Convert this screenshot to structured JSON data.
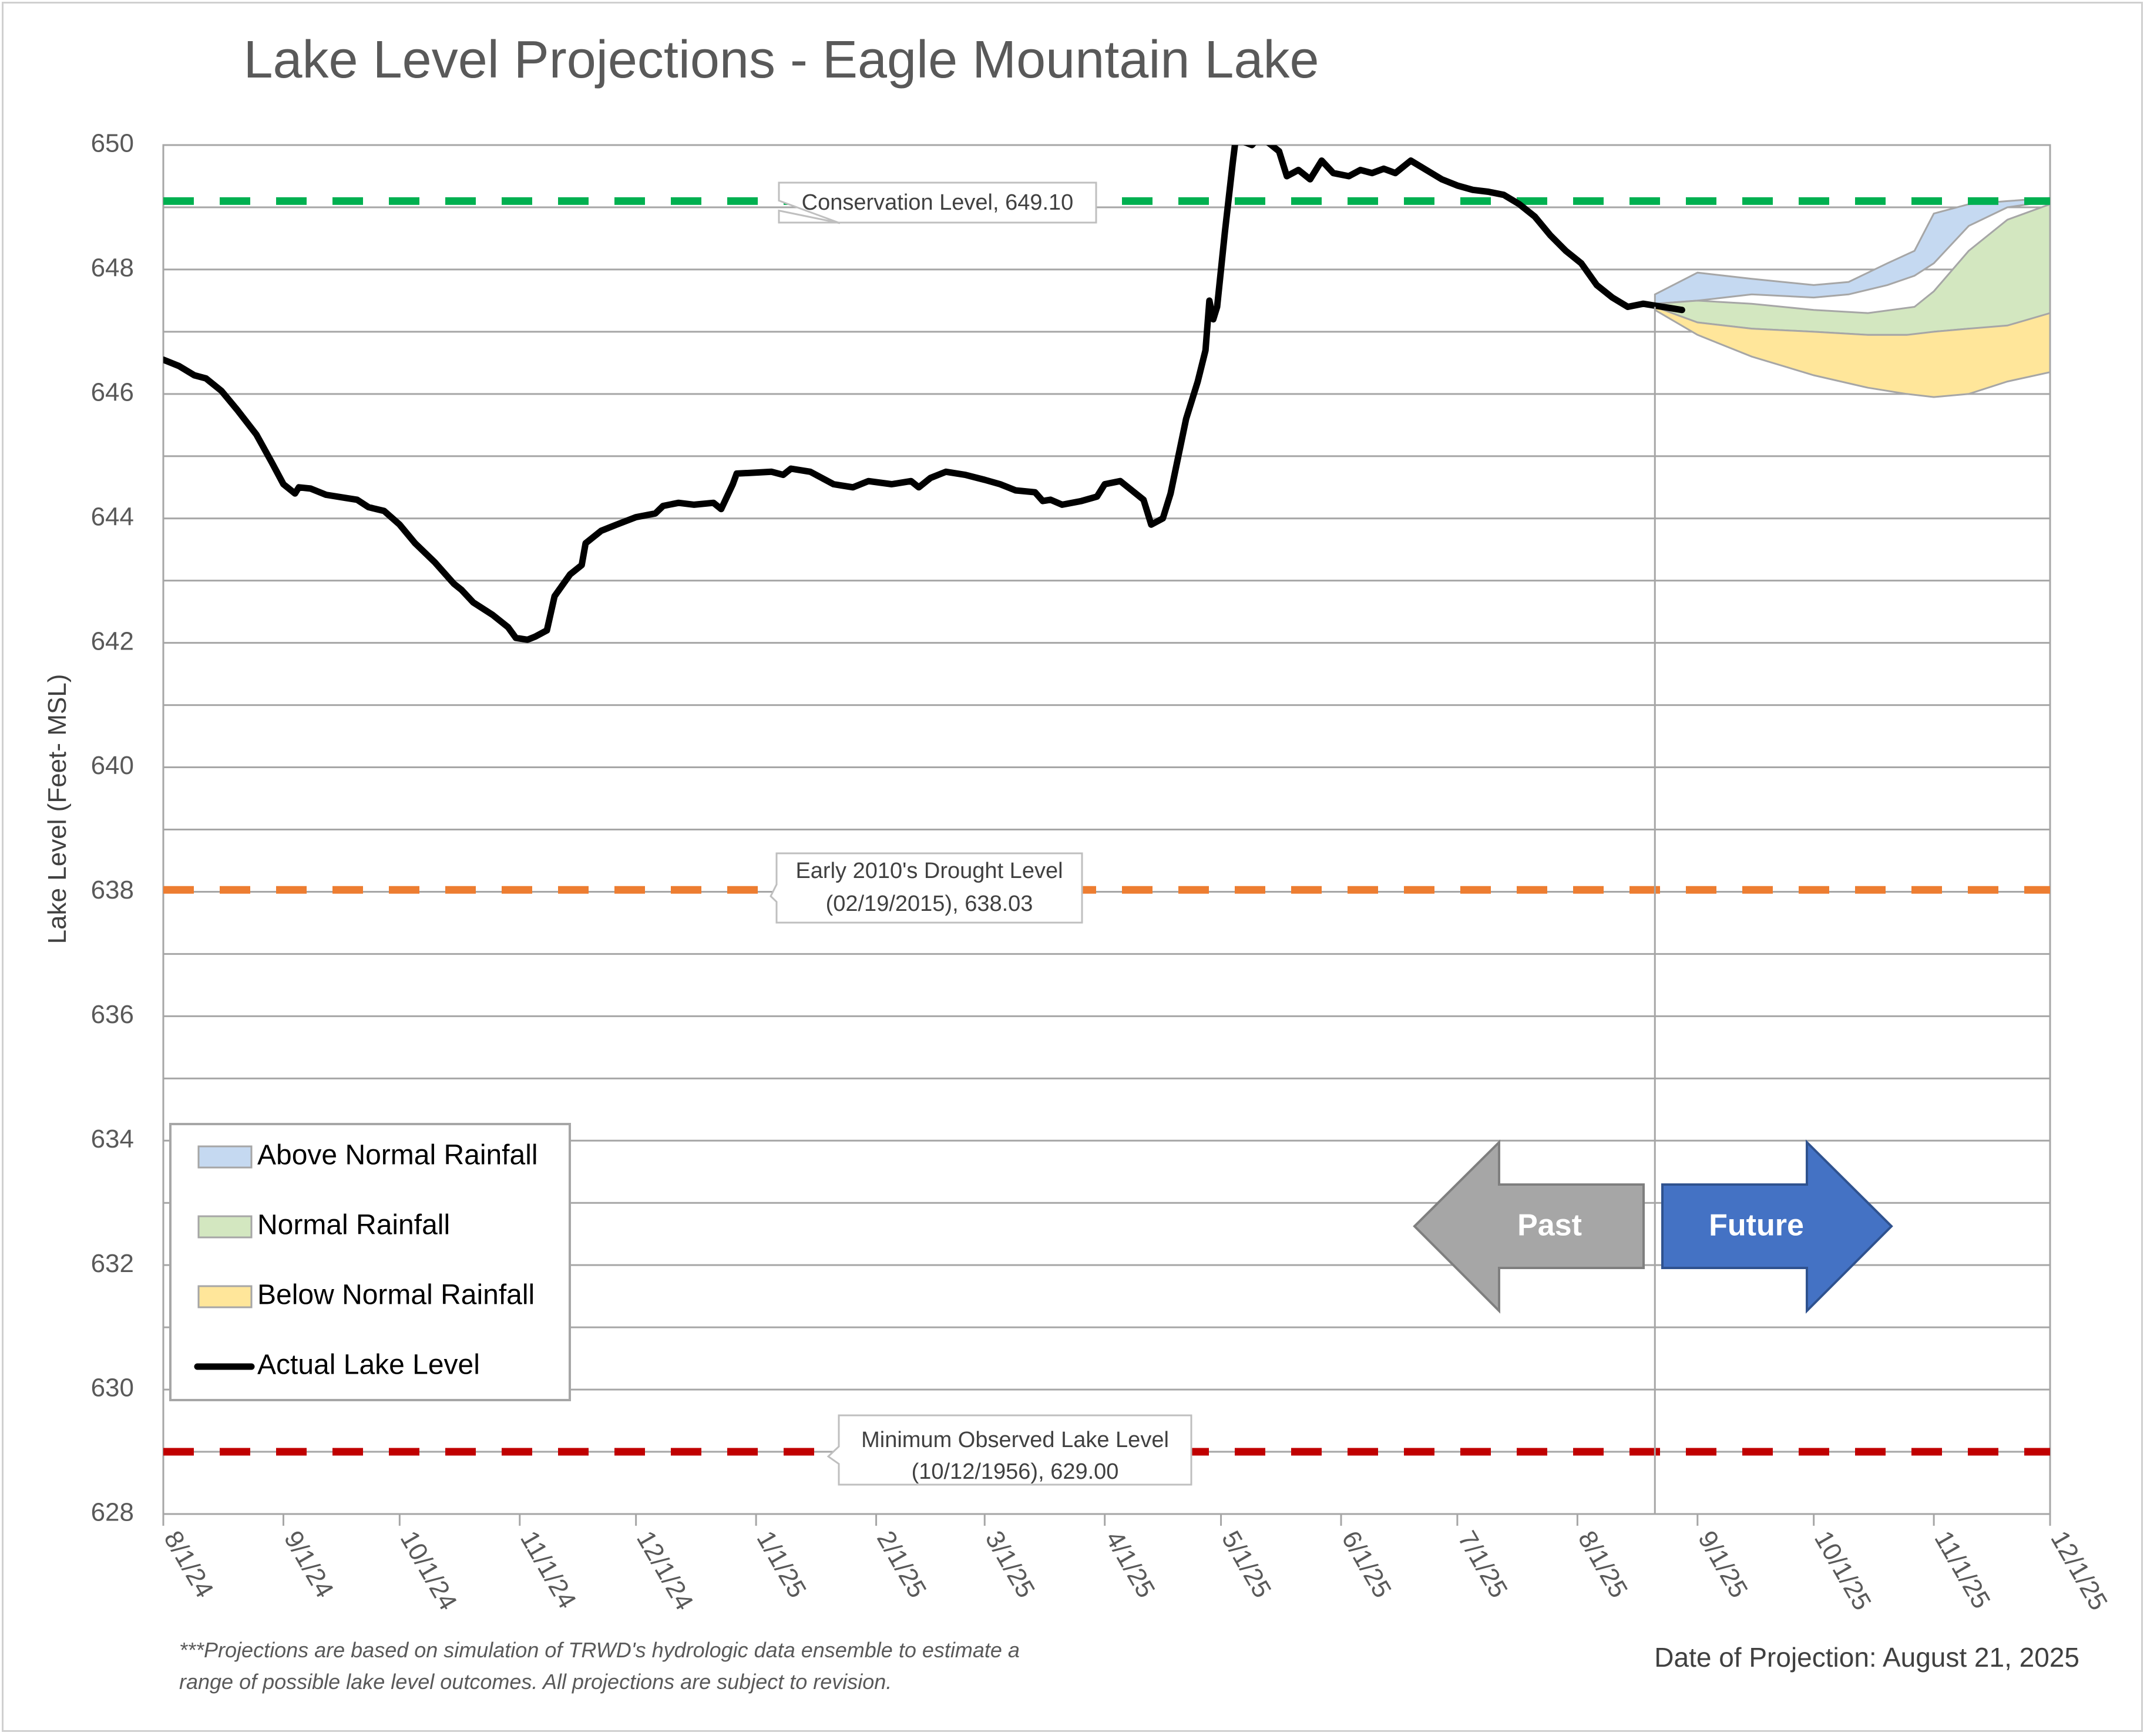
{
  "chart_data": {
    "type": "line",
    "title": "Lake Level Projections - Eagle Mountain Lake",
    "ylabel": "Lake Level (Feet- MSL)",
    "ylim": [
      628,
      650
    ],
    "y_ticks": [
      628,
      630,
      632,
      634,
      636,
      638,
      640,
      642,
      644,
      646,
      648,
      650
    ],
    "xlim": [
      "2024-08-01",
      "2025-12-01"
    ],
    "x_ticks": [
      {
        "date": "2024-08-01",
        "label": "8/1/24"
      },
      {
        "date": "2024-09-01",
        "label": "9/1/24"
      },
      {
        "date": "2024-10-01",
        "label": "10/1/24"
      },
      {
        "date": "2024-11-01",
        "label": "11/1/24"
      },
      {
        "date": "2024-12-01",
        "label": "12/1/24"
      },
      {
        "date": "2025-01-01",
        "label": "1/1/25"
      },
      {
        "date": "2025-02-01",
        "label": "2/1/25"
      },
      {
        "date": "2025-03-01",
        "label": "3/1/25"
      },
      {
        "date": "2025-04-01",
        "label": "4/1/25"
      },
      {
        "date": "2025-05-01",
        "label": "5/1/25"
      },
      {
        "date": "2025-06-01",
        "label": "6/1/25"
      },
      {
        "date": "2025-07-01",
        "label": "7/1/25"
      },
      {
        "date": "2025-08-01",
        "label": "8/1/25"
      },
      {
        "date": "2025-09-01",
        "label": "9/1/25"
      },
      {
        "date": "2025-10-01",
        "label": "10/1/25"
      },
      {
        "date": "2025-11-01",
        "label": "11/1/25"
      },
      {
        "date": "2025-12-01",
        "label": "12/1/25"
      }
    ],
    "grid": true,
    "legend_position": "bottom-left",
    "legend": [
      {
        "label": "Above Normal Rainfall",
        "kind": "band",
        "color": "#c5d9f1"
      },
      {
        "label": "Normal Rainfall",
        "kind": "band",
        "color": "#d3e7c0"
      },
      {
        "label": "Below Normal Rainfall",
        "kind": "band",
        "color": "#ffe69a"
      },
      {
        "label": "Actual Lake Level",
        "kind": "line",
        "color": "#000000"
      }
    ],
    "reference_lines": [
      {
        "name": "Conservation Level",
        "value": 649.1,
        "color": "#00b050",
        "label_lines": [
          "Conservation Level, 649.10"
        ]
      },
      {
        "name": "Early 2010's Drought Level",
        "value": 638.03,
        "color": "#ed7d31",
        "label_lines": [
          "Early 2010's Drought Level",
          "(02/19/2015), 638.03"
        ]
      },
      {
        "name": "Minimum Observed Lake Level",
        "value": 629.0,
        "color": "#c00000",
        "label_lines": [
          "Minimum Observed Lake Level",
          "(10/12/1956), 629.00"
        ]
      }
    ],
    "projection_date": "2025-08-21",
    "series": [
      {
        "name": "Actual Lake Level",
        "color": "#000000",
        "points": [
          [
            "2024-08-01",
            646.55
          ],
          [
            "2024-08-05",
            646.45
          ],
          [
            "2024-08-09",
            646.3
          ],
          [
            "2024-08-12",
            646.25
          ],
          [
            "2024-08-16",
            646.05
          ],
          [
            "2024-08-20",
            645.75
          ],
          [
            "2024-08-25",
            645.35
          ],
          [
            "2024-08-29",
            644.9
          ],
          [
            "2024-09-01",
            644.55
          ],
          [
            "2024-09-04",
            644.4
          ],
          [
            "2024-09-05",
            644.5
          ],
          [
            "2024-09-08",
            644.48
          ],
          [
            "2024-09-12",
            644.38
          ],
          [
            "2024-09-17",
            644.33
          ],
          [
            "2024-09-20",
            644.3
          ],
          [
            "2024-09-23",
            644.18
          ],
          [
            "2024-09-27",
            644.12
          ],
          [
            "2024-10-01",
            643.9
          ],
          [
            "2024-10-05",
            643.6
          ],
          [
            "2024-10-10",
            643.3
          ],
          [
            "2024-10-15",
            642.95
          ],
          [
            "2024-10-17",
            642.85
          ],
          [
            "2024-10-20",
            642.65
          ],
          [
            "2024-10-25",
            642.45
          ],
          [
            "2024-10-29",
            642.25
          ],
          [
            "2024-10-31",
            642.08
          ],
          [
            "2024-11-03",
            642.05
          ],
          [
            "2024-11-05",
            642.1
          ],
          [
            "2024-11-08",
            642.2
          ],
          [
            "2024-11-10",
            642.75
          ],
          [
            "2024-11-14",
            643.1
          ],
          [
            "2024-11-17",
            643.25
          ],
          [
            "2024-11-18",
            643.6
          ],
          [
            "2024-11-22",
            643.8
          ],
          [
            "2024-11-26",
            643.9
          ],
          [
            "2024-12-01",
            644.02
          ],
          [
            "2024-12-06",
            644.08
          ],
          [
            "2024-12-08",
            644.2
          ],
          [
            "2024-12-12",
            644.25
          ],
          [
            "2024-12-16",
            644.22
          ],
          [
            "2024-12-21",
            644.25
          ],
          [
            "2024-12-23",
            644.15
          ],
          [
            "2024-12-26",
            644.55
          ],
          [
            "2024-12-27",
            644.72
          ],
          [
            "2025-01-05",
            644.75
          ],
          [
            "2025-01-08",
            644.7
          ],
          [
            "2025-01-10",
            644.8
          ],
          [
            "2025-01-15",
            644.75
          ],
          [
            "2025-01-21",
            644.55
          ],
          [
            "2025-01-26",
            644.5
          ],
          [
            "2025-01-30",
            644.6
          ],
          [
            "2025-02-05",
            644.55
          ],
          [
            "2025-02-10",
            644.6
          ],
          [
            "2025-02-12",
            644.5
          ],
          [
            "2025-02-15",
            644.65
          ],
          [
            "2025-02-19",
            644.75
          ],
          [
            "2025-02-24",
            644.7
          ],
          [
            "2025-03-01",
            644.62
          ],
          [
            "2025-03-05",
            644.55
          ],
          [
            "2025-03-09",
            644.45
          ],
          [
            "2025-03-14",
            644.42
          ],
          [
            "2025-03-16",
            644.28
          ],
          [
            "2025-03-18",
            644.3
          ],
          [
            "2025-03-21",
            644.22
          ],
          [
            "2025-03-26",
            644.28
          ],
          [
            "2025-03-30",
            644.35
          ],
          [
            "2025-04-01",
            644.55
          ],
          [
            "2025-04-05",
            644.6
          ],
          [
            "2025-04-08",
            644.45
          ],
          [
            "2025-04-11",
            644.3
          ],
          [
            "2025-04-12",
            644.1
          ],
          [
            "2025-04-13",
            643.9
          ],
          [
            "2025-04-16",
            644.0
          ],
          [
            "2025-04-18",
            644.4
          ],
          [
            "2025-04-20",
            645.0
          ],
          [
            "2025-04-22",
            645.6
          ],
          [
            "2025-04-25",
            646.2
          ],
          [
            "2025-04-27",
            646.7
          ],
          [
            "2025-04-28",
            647.5
          ],
          [
            "2025-04-29",
            647.2
          ],
          [
            "2025-04-30",
            647.4
          ],
          [
            "2025-05-02",
            648.6
          ],
          [
            "2025-05-04",
            649.7
          ],
          [
            "2025-05-05",
            650.2
          ],
          [
            "2025-05-07",
            650.05
          ],
          [
            "2025-05-09",
            650.0
          ],
          [
            "2025-05-11",
            650.15
          ],
          [
            "2025-05-13",
            650.05
          ],
          [
            "2025-05-16",
            649.9
          ],
          [
            "2025-05-18",
            649.5
          ],
          [
            "2025-05-21",
            649.6
          ],
          [
            "2025-05-24",
            649.45
          ],
          [
            "2025-05-27",
            649.75
          ],
          [
            "2025-05-30",
            649.55
          ],
          [
            "2025-06-03",
            649.5
          ],
          [
            "2025-06-06",
            649.6
          ],
          [
            "2025-06-09",
            649.55
          ],
          [
            "2025-06-12",
            649.62
          ],
          [
            "2025-06-15",
            649.55
          ],
          [
            "2025-06-19",
            649.75
          ],
          [
            "2025-06-23",
            649.6
          ],
          [
            "2025-06-27",
            649.45
          ],
          [
            "2025-07-01",
            649.35
          ],
          [
            "2025-07-05",
            649.28
          ],
          [
            "2025-07-09",
            649.25
          ],
          [
            "2025-07-13",
            649.2
          ],
          [
            "2025-07-17",
            649.05
          ],
          [
            "2025-07-21",
            648.85
          ],
          [
            "2025-07-25",
            648.55
          ],
          [
            "2025-07-29",
            648.3
          ],
          [
            "2025-08-02",
            648.1
          ],
          [
            "2025-08-06",
            647.75
          ],
          [
            "2025-08-10",
            647.55
          ],
          [
            "2025-08-14",
            647.4
          ],
          [
            "2025-08-18",
            647.45
          ],
          [
            "2025-08-21",
            647.42
          ],
          [
            "2025-08-25",
            647.38
          ],
          [
            "2025-08-28",
            647.35
          ]
        ]
      },
      {
        "name": "Above Normal Rainfall",
        "color": "#c5d9f1",
        "band": [
          [
            "2025-08-21",
            647.45,
            647.6
          ],
          [
            "2025-09-01",
            647.5,
            647.95
          ],
          [
            "2025-09-15",
            647.6,
            647.85
          ],
          [
            "2025-10-01",
            647.55,
            647.75
          ],
          [
            "2025-10-10",
            647.6,
            647.8
          ],
          [
            "2025-10-20",
            647.75,
            648.1
          ],
          [
            "2025-10-27",
            647.9,
            648.3
          ],
          [
            "2025-11-01",
            648.1,
            648.9
          ],
          [
            "2025-11-10",
            648.7,
            649.05
          ],
          [
            "2025-11-20",
            649.0,
            649.1
          ],
          [
            "2025-12-01",
            649.1,
            649.15
          ]
        ]
      },
      {
        "name": "Normal Rainfall",
        "color": "#d3e7c0",
        "band": [
          [
            "2025-08-21",
            647.4,
            647.45
          ],
          [
            "2025-09-01",
            647.15,
            647.5
          ],
          [
            "2025-09-15",
            647.05,
            647.45
          ],
          [
            "2025-10-01",
            647.0,
            647.35
          ],
          [
            "2025-10-15",
            646.95,
            647.3
          ],
          [
            "2025-10-27",
            646.95,
            647.4
          ],
          [
            "2025-11-01",
            647.0,
            647.65
          ],
          [
            "2025-11-10",
            647.05,
            648.3
          ],
          [
            "2025-11-20",
            647.05,
            648.8
          ],
          [
            "2025-12-01",
            647.3,
            649.05
          ]
        ]
      },
      {
        "name": "Below Normal Rainfall",
        "color": "#ffe69a",
        "band": [
          [
            "2025-08-21",
            647.35,
            647.4
          ],
          [
            "2025-09-01",
            646.95,
            647.15
          ],
          [
            "2025-09-15",
            646.6,
            647.05
          ],
          [
            "2025-10-01",
            646.3,
            647.0
          ],
          [
            "2025-10-15",
            646.1,
            646.95
          ],
          [
            "2025-10-25",
            646.0,
            646.95
          ],
          [
            "2025-11-01",
            645.95,
            647.0
          ],
          [
            "2025-11-10",
            646.0,
            647.05
          ],
          [
            "2025-11-20",
            646.2,
            647.1
          ],
          [
            "2025-12-01",
            646.35,
            647.3
          ]
        ]
      }
    ],
    "annotations": [
      {
        "text": "Past",
        "shape": "arrow-left",
        "color": "#a6a6a6"
      },
      {
        "text": "Future",
        "shape": "arrow-right",
        "color": "#4472c4"
      }
    ]
  },
  "footnote_lines": [
    "***Projections are based on simulation of TRWD's hydrologic data ensemble to estimate a",
    "range of possible lake level outcomes.  All projections are subject to revision."
  ],
  "projection_text": "Date of Projection: August 21, 2025"
}
